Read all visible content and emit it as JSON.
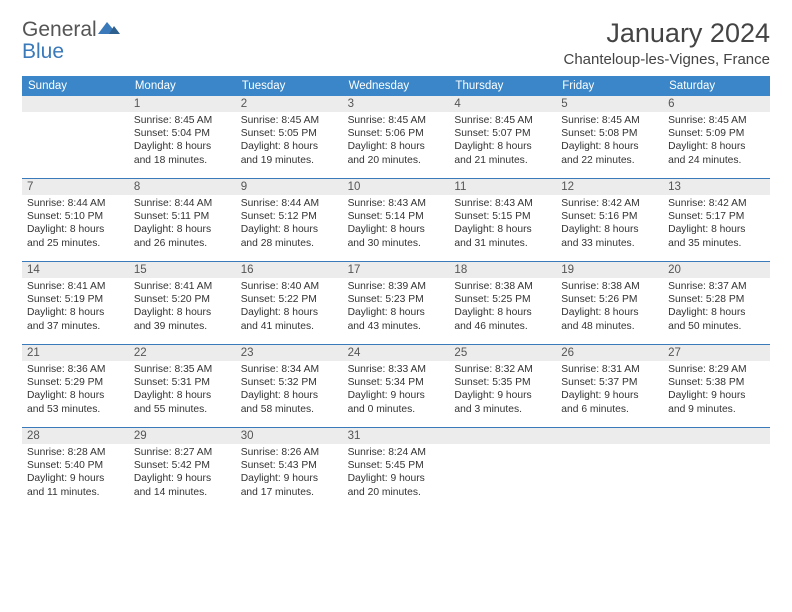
{
  "logo": {
    "text1": "General",
    "text2": "Blue"
  },
  "title": "January 2024",
  "location": "Chanteloup-les-Vignes, France",
  "colors": {
    "header_bg": "#3a86c8",
    "row_divider": "#3a7aba",
    "daynum_bg": "#ececec",
    "text": "#333333"
  },
  "day_names": [
    "Sunday",
    "Monday",
    "Tuesday",
    "Wednesday",
    "Thursday",
    "Friday",
    "Saturday"
  ],
  "weeks": [
    [
      {
        "n": "",
        "sunrise": "",
        "sunset": "",
        "daylight": ""
      },
      {
        "n": "1",
        "sunrise": "Sunrise: 8:45 AM",
        "sunset": "Sunset: 5:04 PM",
        "daylight": "Daylight: 8 hours and 18 minutes."
      },
      {
        "n": "2",
        "sunrise": "Sunrise: 8:45 AM",
        "sunset": "Sunset: 5:05 PM",
        "daylight": "Daylight: 8 hours and 19 minutes."
      },
      {
        "n": "3",
        "sunrise": "Sunrise: 8:45 AM",
        "sunset": "Sunset: 5:06 PM",
        "daylight": "Daylight: 8 hours and 20 minutes."
      },
      {
        "n": "4",
        "sunrise": "Sunrise: 8:45 AM",
        "sunset": "Sunset: 5:07 PM",
        "daylight": "Daylight: 8 hours and 21 minutes."
      },
      {
        "n": "5",
        "sunrise": "Sunrise: 8:45 AM",
        "sunset": "Sunset: 5:08 PM",
        "daylight": "Daylight: 8 hours and 22 minutes."
      },
      {
        "n": "6",
        "sunrise": "Sunrise: 8:45 AM",
        "sunset": "Sunset: 5:09 PM",
        "daylight": "Daylight: 8 hours and 24 minutes."
      }
    ],
    [
      {
        "n": "7",
        "sunrise": "Sunrise: 8:44 AM",
        "sunset": "Sunset: 5:10 PM",
        "daylight": "Daylight: 8 hours and 25 minutes."
      },
      {
        "n": "8",
        "sunrise": "Sunrise: 8:44 AM",
        "sunset": "Sunset: 5:11 PM",
        "daylight": "Daylight: 8 hours and 26 minutes."
      },
      {
        "n": "9",
        "sunrise": "Sunrise: 8:44 AM",
        "sunset": "Sunset: 5:12 PM",
        "daylight": "Daylight: 8 hours and 28 minutes."
      },
      {
        "n": "10",
        "sunrise": "Sunrise: 8:43 AM",
        "sunset": "Sunset: 5:14 PM",
        "daylight": "Daylight: 8 hours and 30 minutes."
      },
      {
        "n": "11",
        "sunrise": "Sunrise: 8:43 AM",
        "sunset": "Sunset: 5:15 PM",
        "daylight": "Daylight: 8 hours and 31 minutes."
      },
      {
        "n": "12",
        "sunrise": "Sunrise: 8:42 AM",
        "sunset": "Sunset: 5:16 PM",
        "daylight": "Daylight: 8 hours and 33 minutes."
      },
      {
        "n": "13",
        "sunrise": "Sunrise: 8:42 AM",
        "sunset": "Sunset: 5:17 PM",
        "daylight": "Daylight: 8 hours and 35 minutes."
      }
    ],
    [
      {
        "n": "14",
        "sunrise": "Sunrise: 8:41 AM",
        "sunset": "Sunset: 5:19 PM",
        "daylight": "Daylight: 8 hours and 37 minutes."
      },
      {
        "n": "15",
        "sunrise": "Sunrise: 8:41 AM",
        "sunset": "Sunset: 5:20 PM",
        "daylight": "Daylight: 8 hours and 39 minutes."
      },
      {
        "n": "16",
        "sunrise": "Sunrise: 8:40 AM",
        "sunset": "Sunset: 5:22 PM",
        "daylight": "Daylight: 8 hours and 41 minutes."
      },
      {
        "n": "17",
        "sunrise": "Sunrise: 8:39 AM",
        "sunset": "Sunset: 5:23 PM",
        "daylight": "Daylight: 8 hours and 43 minutes."
      },
      {
        "n": "18",
        "sunrise": "Sunrise: 8:38 AM",
        "sunset": "Sunset: 5:25 PM",
        "daylight": "Daylight: 8 hours and 46 minutes."
      },
      {
        "n": "19",
        "sunrise": "Sunrise: 8:38 AM",
        "sunset": "Sunset: 5:26 PM",
        "daylight": "Daylight: 8 hours and 48 minutes."
      },
      {
        "n": "20",
        "sunrise": "Sunrise: 8:37 AM",
        "sunset": "Sunset: 5:28 PM",
        "daylight": "Daylight: 8 hours and 50 minutes."
      }
    ],
    [
      {
        "n": "21",
        "sunrise": "Sunrise: 8:36 AM",
        "sunset": "Sunset: 5:29 PM",
        "daylight": "Daylight: 8 hours and 53 minutes."
      },
      {
        "n": "22",
        "sunrise": "Sunrise: 8:35 AM",
        "sunset": "Sunset: 5:31 PM",
        "daylight": "Daylight: 8 hours and 55 minutes."
      },
      {
        "n": "23",
        "sunrise": "Sunrise: 8:34 AM",
        "sunset": "Sunset: 5:32 PM",
        "daylight": "Daylight: 8 hours and 58 minutes."
      },
      {
        "n": "24",
        "sunrise": "Sunrise: 8:33 AM",
        "sunset": "Sunset: 5:34 PM",
        "daylight": "Daylight: 9 hours and 0 minutes."
      },
      {
        "n": "25",
        "sunrise": "Sunrise: 8:32 AM",
        "sunset": "Sunset: 5:35 PM",
        "daylight": "Daylight: 9 hours and 3 minutes."
      },
      {
        "n": "26",
        "sunrise": "Sunrise: 8:31 AM",
        "sunset": "Sunset: 5:37 PM",
        "daylight": "Daylight: 9 hours and 6 minutes."
      },
      {
        "n": "27",
        "sunrise": "Sunrise: 8:29 AM",
        "sunset": "Sunset: 5:38 PM",
        "daylight": "Daylight: 9 hours and 9 minutes."
      }
    ],
    [
      {
        "n": "28",
        "sunrise": "Sunrise: 8:28 AM",
        "sunset": "Sunset: 5:40 PM",
        "daylight": "Daylight: 9 hours and 11 minutes."
      },
      {
        "n": "29",
        "sunrise": "Sunrise: 8:27 AM",
        "sunset": "Sunset: 5:42 PM",
        "daylight": "Daylight: 9 hours and 14 minutes."
      },
      {
        "n": "30",
        "sunrise": "Sunrise: 8:26 AM",
        "sunset": "Sunset: 5:43 PM",
        "daylight": "Daylight: 9 hours and 17 minutes."
      },
      {
        "n": "31",
        "sunrise": "Sunrise: 8:24 AM",
        "sunset": "Sunset: 5:45 PM",
        "daylight": "Daylight: 9 hours and 20 minutes."
      },
      {
        "n": "",
        "sunrise": "",
        "sunset": "",
        "daylight": ""
      },
      {
        "n": "",
        "sunrise": "",
        "sunset": "",
        "daylight": ""
      },
      {
        "n": "",
        "sunrise": "",
        "sunset": "",
        "daylight": ""
      }
    ]
  ]
}
